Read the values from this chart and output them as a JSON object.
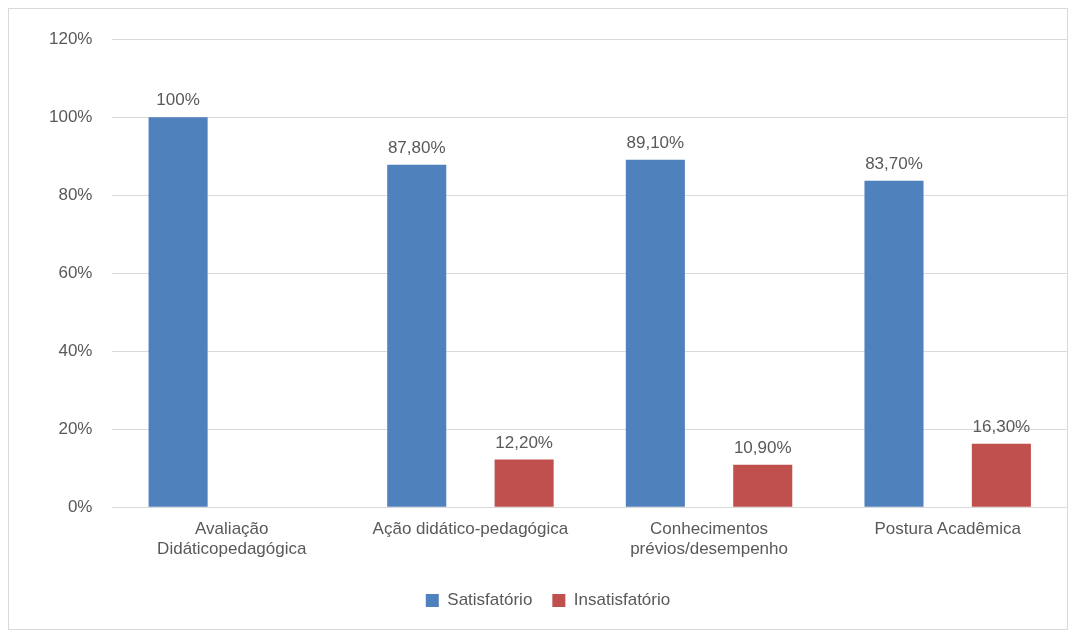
{
  "chart_data": {
    "type": "bar",
    "categories": [
      "Avaliação Didáticopedagógica",
      "Ação didático-pedagógica",
      "Conhecimentos prévios/desempenho",
      "Postura Acadêmica"
    ],
    "series": [
      {
        "name": "Satisfatório",
        "color": "#4f81bd",
        "values": [
          100,
          87.8,
          89.1,
          83.7
        ],
        "value_labels": [
          "100%",
          "87,80%",
          "89,10%",
          "83,70%"
        ]
      },
      {
        "name": "Insatisfatório",
        "color": "#c0504d",
        "values": [
          null,
          12.2,
          10.9,
          16.3
        ],
        "value_labels": [
          null,
          "12,20%",
          "10,90%",
          "16,30%"
        ]
      }
    ],
    "ylim": [
      0,
      120
    ],
    "yticks": [
      {
        "value": 0,
        "label": "0%"
      },
      {
        "value": 20,
        "label": "20%"
      },
      {
        "value": 40,
        "label": "40%"
      },
      {
        "value": 60,
        "label": "60%"
      },
      {
        "value": 80,
        "label": "80%"
      },
      {
        "value": 100,
        "label": "100%"
      },
      {
        "value": 120,
        "label": "120%"
      }
    ],
    "grid": "y",
    "legend": "bottom"
  }
}
